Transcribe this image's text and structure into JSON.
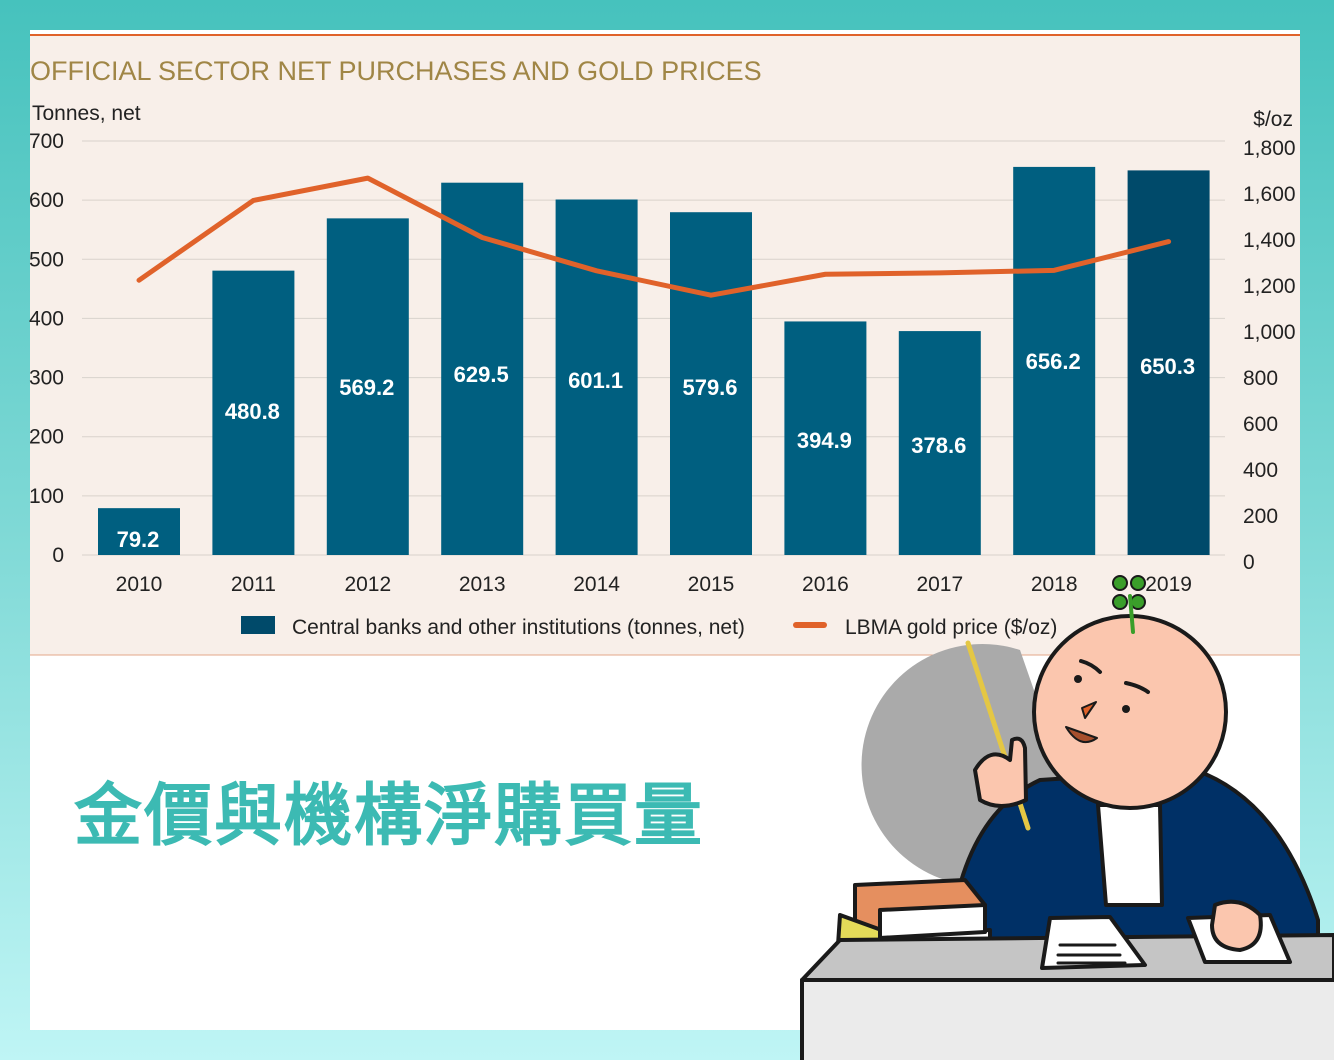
{
  "caption_zh": "金價與機構淨購買量",
  "colors": {
    "bar": "#005f80",
    "bar_last": "#004a6a",
    "line": "#e0622a",
    "title": "#a08646",
    "accent_teal": "#3cbab3",
    "panel_bg": "#f8efe9"
  },
  "chart_data": {
    "type": "bar+line",
    "title": "OFFICIAL SECTOR NET PURCHASES AND GOLD PRICES",
    "ylabel_left": "Tonnes, net",
    "ylabel_right": "$/oz",
    "categories": [
      "2010",
      "2011",
      "2012",
      "2013",
      "2014",
      "2015",
      "2016",
      "2017",
      "2018",
      "2019"
    ],
    "ylim_left": [
      0,
      700
    ],
    "ylim_right": [
      0,
      1800
    ],
    "left_ticks": [
      "0",
      "100",
      "200",
      "300",
      "400",
      "500",
      "600",
      "700"
    ],
    "right_ticks": [
      "0",
      "200",
      "400",
      "600",
      "800",
      "1,000",
      "1,200",
      "1,400",
      "1,600",
      "1,800"
    ],
    "grid": true,
    "legend_position": "bottom",
    "series": [
      {
        "name": "Central banks and other institutions (tonnes, net)",
        "type": "bar",
        "axis": "left",
        "values": [
          79.2,
          480.8,
          569.2,
          629.5,
          601.1,
          579.6,
          394.9,
          378.6,
          656.2,
          650.3
        ],
        "labels": [
          "79.2",
          "480.8",
          "569.2",
          "629.5",
          "601.1",
          "579.6",
          "394.9",
          "378.6",
          "656.2",
          "650.3"
        ]
      },
      {
        "name": "LBMA gold price ($/oz)",
        "type": "line",
        "axis": "right",
        "values": [
          1225,
          1572,
          1669,
          1411,
          1266,
          1160,
          1251,
          1257,
          1268,
          1393
        ]
      }
    ]
  }
}
